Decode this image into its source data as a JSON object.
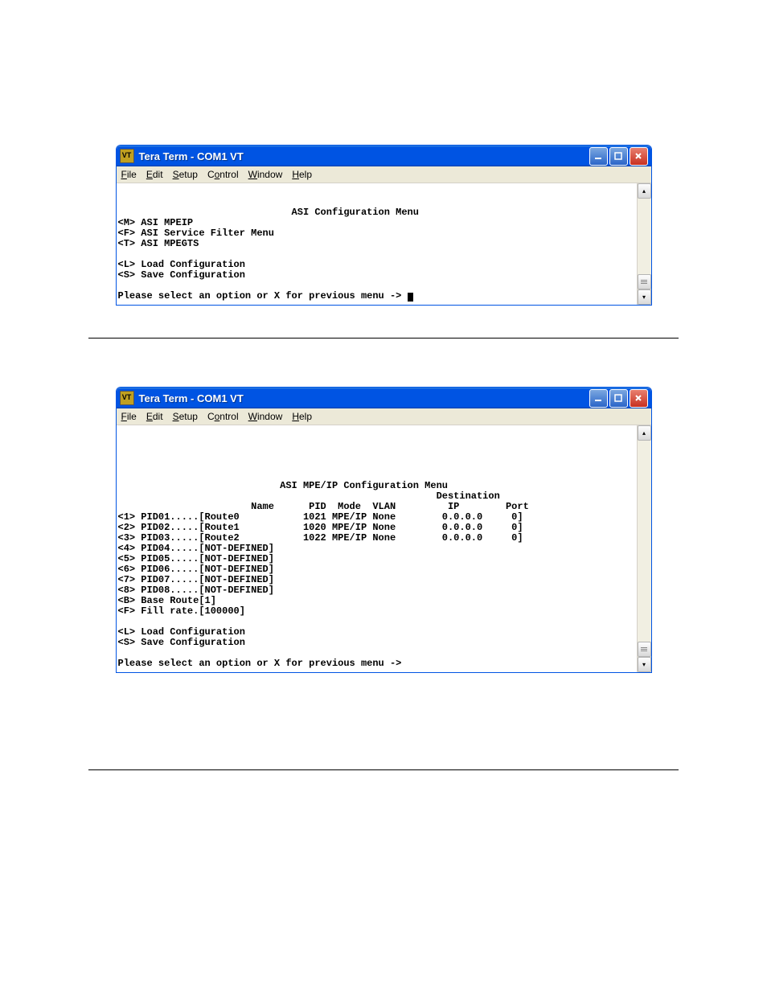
{
  "window_title": "Tera Term - COM1 VT",
  "menu": {
    "file": "File",
    "edit": "Edit",
    "setup": "Setup",
    "control": "Control",
    "window": "Window",
    "help": "Help"
  },
  "terminal1": {
    "title": "ASI Configuration Menu",
    "lines": [
      "<M> ASI MPEIP",
      "<F> ASI Service Filter Menu",
      "<T> ASI MPEGTS",
      "",
      "<L> Load Configuration",
      "<S> Save Configuration",
      "",
      "Please select an option or X for previous menu -> "
    ]
  },
  "terminal2": {
    "title": "ASI MPE/IP Configuration Menu",
    "header_line1": "                                                       Destination",
    "header_line2": "                       Name      PID  Mode  VLAN         IP        Port",
    "rows": [
      "<1> PID01.....[Route0           1021 MPE/IP None        0.0.0.0     0]",
      "<2> PID02.....[Route1           1020 MPE/IP None        0.0.0.0     0]",
      "<3> PID03.....[Route2           1022 MPE/IP None        0.0.0.0     0]",
      "<4> PID04.....[NOT-DEFINED]",
      "<5> PID05.....[NOT-DEFINED]",
      "<6> PID06.....[NOT-DEFINED]",
      "<7> PID07.....[NOT-DEFINED]",
      "<8> PID08.....[NOT-DEFINED]",
      "<B> Base Route[1]",
      "<F> Fill rate.[100000]",
      "",
      "<L> Load Configuration",
      "<S> Save Configuration",
      "",
      "Please select an option or X for previous menu ->"
    ]
  }
}
